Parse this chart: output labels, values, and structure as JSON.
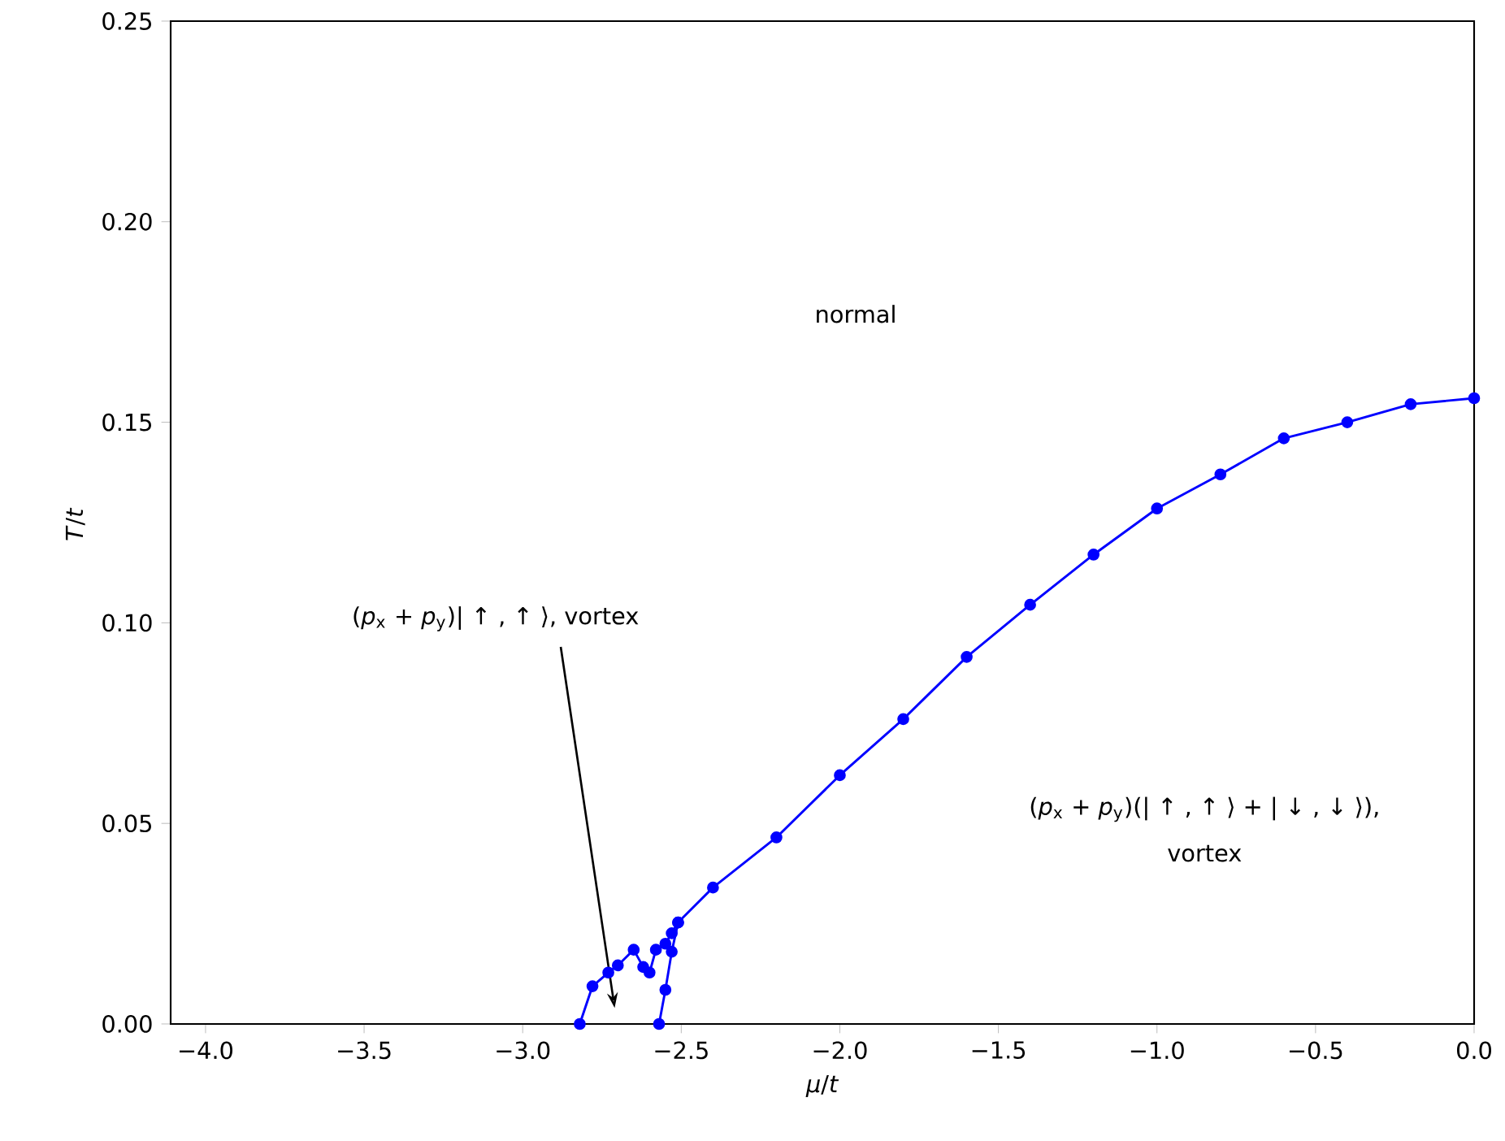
{
  "chart_data": {
    "type": "line",
    "xlabel": "*μ*/*t*",
    "ylabel": "*T*/*t*",
    "xlim": [
      -4.11,
      0
    ],
    "ylim": [
      0,
      0.25
    ],
    "xticks": [
      {
        "value": -4,
        "label": "−4.0"
      },
      {
        "value": -3.5,
        "label": "−3.5"
      },
      {
        "value": -3,
        "label": "−3.0"
      },
      {
        "value": -2.5,
        "label": "−2.5"
      },
      {
        "value": -2,
        "label": "−2.0"
      },
      {
        "value": -1.5,
        "label": "−1.5"
      },
      {
        "value": -1,
        "label": "−1.0"
      },
      {
        "value": -0.5,
        "label": "−0.5"
      },
      {
        "value": 0,
        "label": "0.0"
      }
    ],
    "yticks": [
      {
        "value": 0,
        "label": "0.00"
      },
      {
        "value": 0.05,
        "label": "0.05"
      },
      {
        "value": 0.1,
        "label": "0.10"
      },
      {
        "value": 0.15,
        "label": "0.15"
      },
      {
        "value": 0.2,
        "label": "0.20"
      },
      {
        "value": 0.25,
        "label": "0.25"
      }
    ],
    "series": [
      {
        "color": "#0000ff",
        "x": [
          -2.82,
          -2.78,
          -2.73,
          -2.7,
          -2.65,
          -2.62,
          -2.6,
          -2.58,
          -2.55,
          -2.53,
          -2.51,
          -2.4,
          -2.2,
          -2.0,
          -1.8,
          -1.6,
          -1.4,
          -1.2,
          -1.0,
          -0.8,
          -0.6,
          -0.4,
          -0.2,
          0.0
        ],
        "values": [
          0.0,
          0.0094,
          0.0128,
          0.0146,
          0.0185,
          0.0142,
          0.0128,
          0.0185,
          0.02,
          0.0226,
          0.0253,
          0.034,
          0.0465,
          0.062,
          0.076,
          0.0915,
          0.1045,
          0.117,
          0.1285,
          0.137,
          0.146,
          0.15,
          0.1545,
          0.156
        ]
      },
      {
        "color": "#0000ff",
        "x": [
          -2.57,
          -2.55,
          -2.53,
          -2.51
        ],
        "values": [
          0.0,
          0.0085,
          0.018,
          0.0253
        ]
      }
    ],
    "marker": "circle",
    "line_style": "solid",
    "grid": false,
    "annotations": [
      "normal",
      "(*p*$_{x}$ + *p*$_{y}$)| ↑ , ↑ ⟩, vortex",
      "(*p*$_{x}$ + *p*$_{y}$)(| ↑ , ↑ ⟩ + | ↓ , ↓ ⟩),",
      "vortex"
    ]
  }
}
